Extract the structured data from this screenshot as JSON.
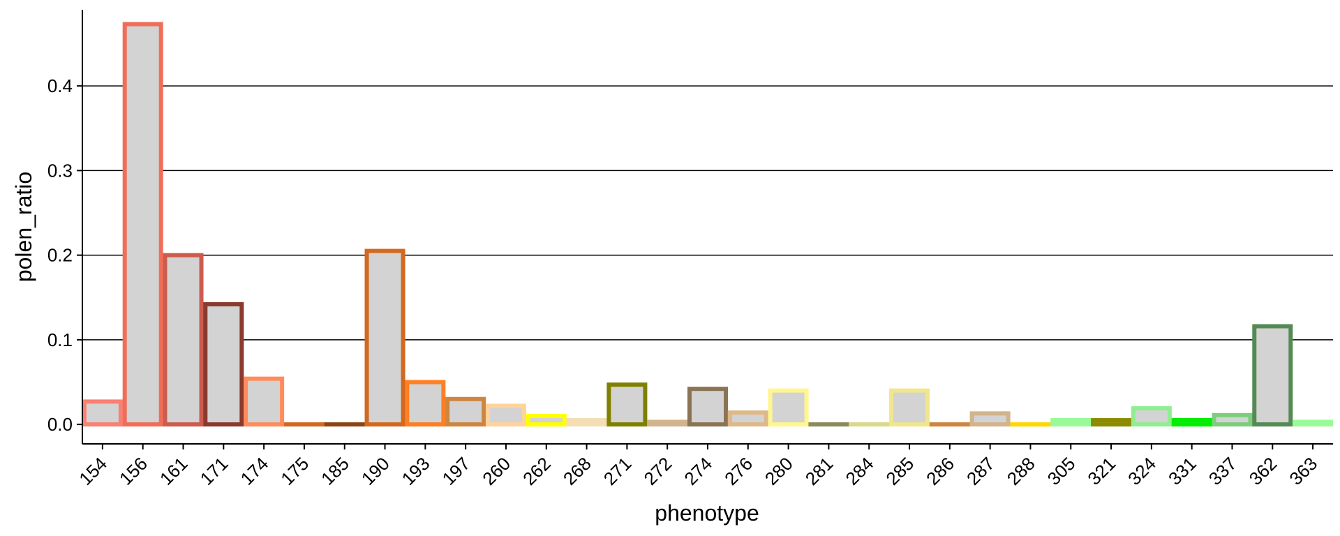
{
  "chart_data": {
    "type": "bar",
    "title": "",
    "xlabel": "phenotype",
    "ylabel": "polen_ratio",
    "ylim": [
      -0.023,
      0.49
    ],
    "yticks": [
      0.0,
      0.1,
      0.2,
      0.3,
      0.4
    ],
    "ytick_labels": [
      "0.0",
      "0.1",
      "0.2",
      "0.3",
      "0.4"
    ],
    "grid": "horizontal major lines",
    "legend": "none",
    "bar_fill_color": "#d3d3d3",
    "categories": [
      "154",
      "156",
      "161",
      "171",
      "174",
      "175",
      "185",
      "190",
      "193",
      "197",
      "260",
      "262",
      "268",
      "271",
      "272",
      "274",
      "276",
      "280",
      "281",
      "284",
      "285",
      "286",
      "287",
      "288",
      "305",
      "321",
      "324",
      "331",
      "337",
      "362",
      "363"
    ],
    "values": [
      0.027,
      0.473,
      0.2,
      0.142,
      0.054,
      0.0,
      0.0,
      0.205,
      0.05,
      0.03,
      0.022,
      0.01,
      0.005,
      0.047,
      0.003,
      0.042,
      0.014,
      0.04,
      0.0,
      0.0,
      0.04,
      0.0,
      0.013,
      0.0,
      0.005,
      0.005,
      0.019,
      0.005,
      0.011,
      0.116,
      0.003
    ],
    "outline_colors": [
      "#FA8072",
      "#F06E58",
      "#CD5C4E",
      "#8B3A2E",
      "#FF8C5A",
      "#D2691E",
      "#8B4513",
      "#D2691E",
      "#FF7F24",
      "#CD853F",
      "#FFD39B",
      "#FFFF00",
      "#F5DEB3",
      "#808000",
      "#D2B48C",
      "#8B7355",
      "#DEB887",
      "#FFF68F",
      "#8B8B5A",
      "#D9D98C",
      "#F0E68C",
      "#CD853F",
      "#D2B48C",
      "#FFD700",
      "#98FB98",
      "#8B8B00",
      "#90EE90",
      "#00EE00",
      "#7CCD7C",
      "#548B54",
      "#98FB98"
    ]
  }
}
